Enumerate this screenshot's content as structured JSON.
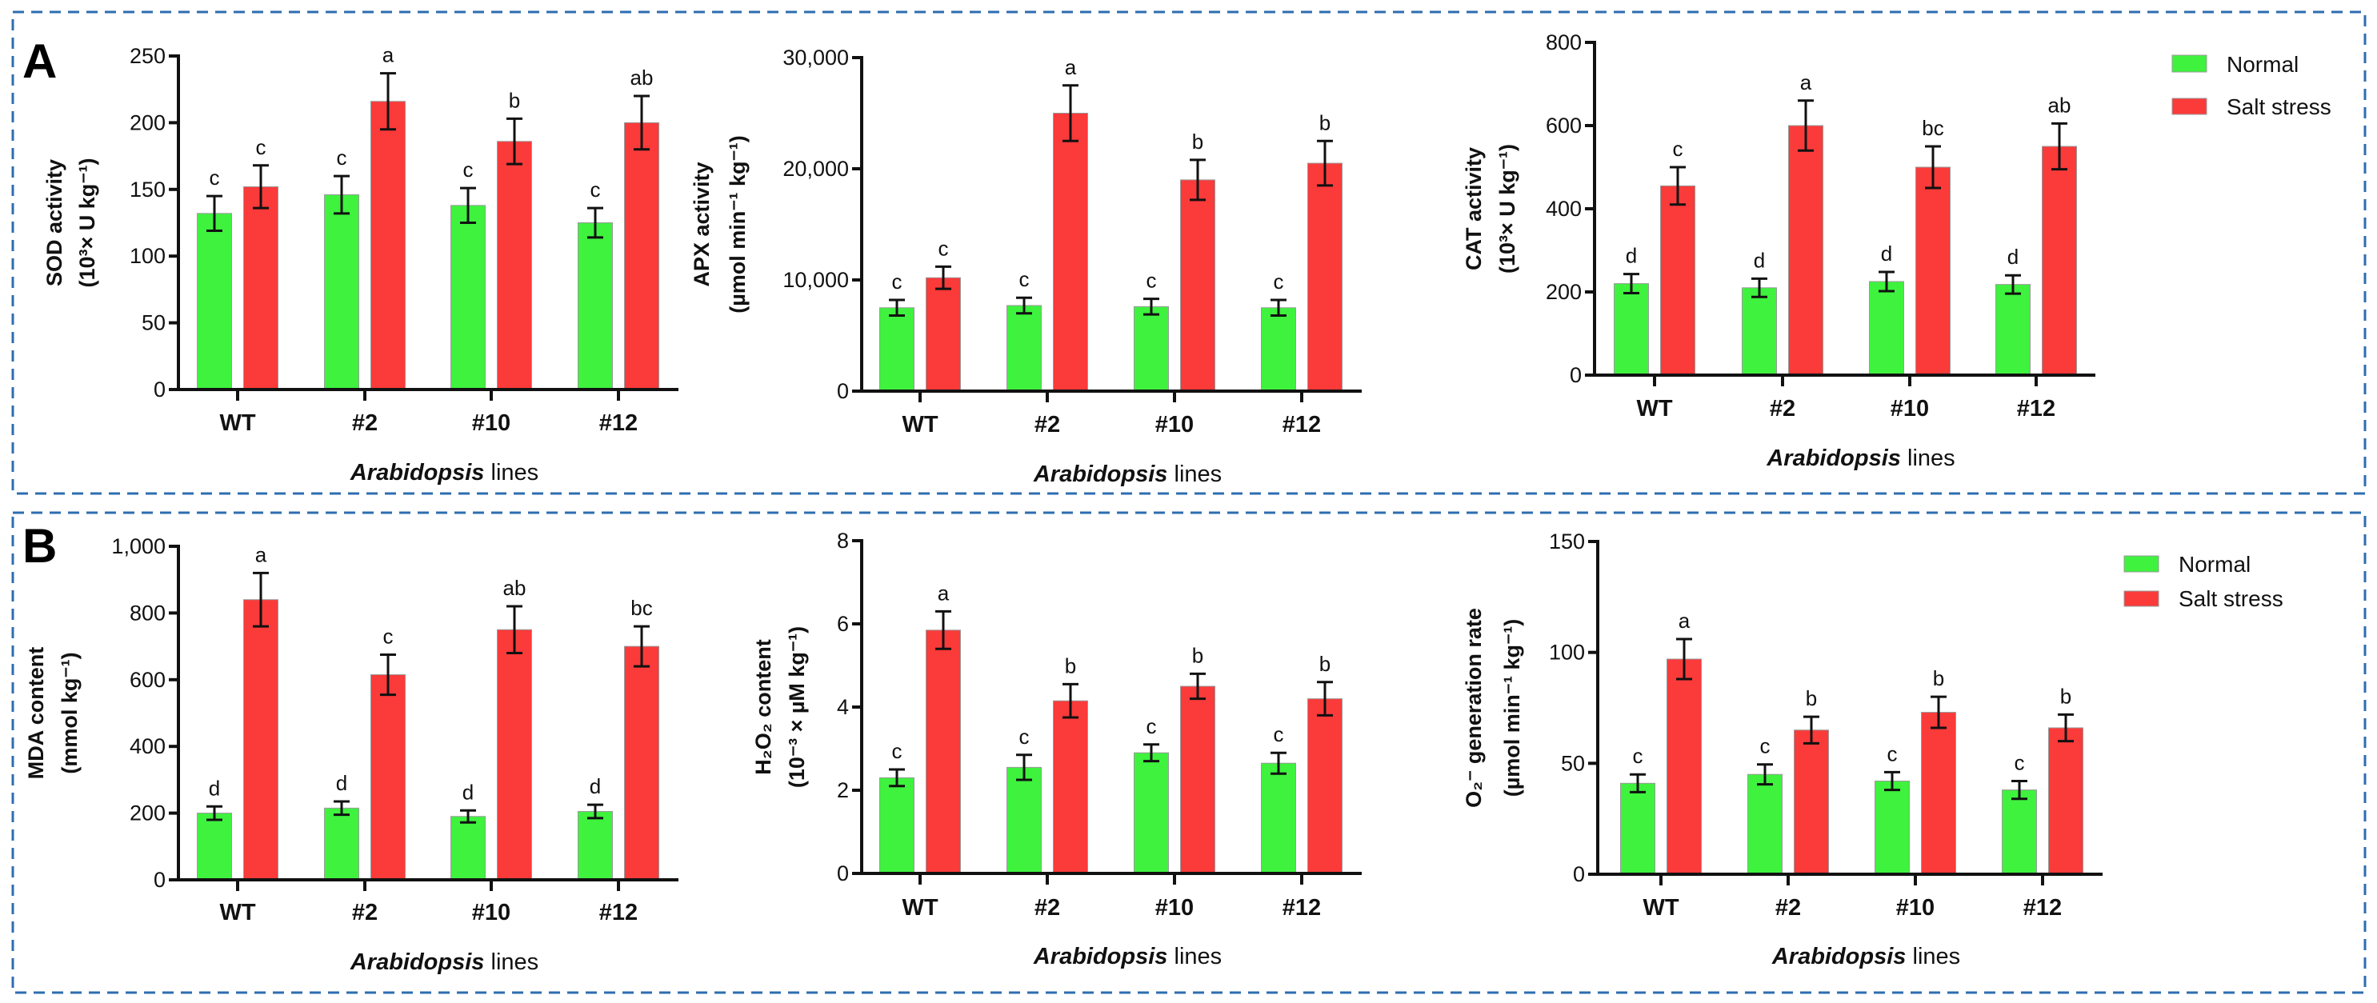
{
  "panels": [
    {
      "label": "A"
    },
    {
      "label": "B"
    }
  ],
  "legend": [
    {
      "name": "Normal",
      "color": "#3ef23e"
    },
    {
      "name": "Salt stress",
      "color": "#fb3a3a"
    }
  ],
  "chart_data": [
    {
      "type": "bar",
      "panel": "A",
      "ylabel": [
        "SOD activity",
        "(10³× U kg⁻¹)"
      ],
      "xlabel_italic": "Arabidopsis",
      "xlabel_rest": " lines",
      "categories": [
        "WT",
        "#2",
        "#10",
        "#12"
      ],
      "ylim": [
        0,
        250
      ],
      "yticks": [
        0,
        50,
        100,
        150,
        200,
        250
      ],
      "ytick_labels": [
        "0",
        "50",
        "100",
        "150",
        "200",
        "250"
      ],
      "series": [
        {
          "name": "Normal",
          "values": [
            132,
            146,
            138,
            125
          ],
          "errors": [
            13,
            14,
            13,
            11
          ],
          "letters": [
            "c",
            "c",
            "c",
            "c"
          ]
        },
        {
          "name": "Salt stress",
          "values": [
            152,
            216,
            186,
            200
          ],
          "errors": [
            16,
            21,
            17,
            20
          ],
          "letters": [
            "c",
            "a",
            "b",
            "ab"
          ]
        }
      ]
    },
    {
      "type": "bar",
      "panel": "A",
      "ylabel": [
        "APX activity",
        "(µmol min⁻¹ kg⁻¹)"
      ],
      "xlabel_italic": "Arabidopsis",
      "xlabel_rest": " lines",
      "categories": [
        "WT",
        "#2",
        "#10",
        "#12"
      ],
      "ylim": [
        0,
        30000
      ],
      "yticks": [
        0,
        10000,
        20000,
        30000
      ],
      "ytick_labels": [
        "0",
        "10,000",
        "20,000",
        "30,000"
      ],
      "series": [
        {
          "name": "Normal",
          "values": [
            7500,
            7700,
            7600,
            7500
          ],
          "errors": [
            700,
            700,
            700,
            700
          ],
          "letters": [
            "c",
            "c",
            "c",
            "c"
          ]
        },
        {
          "name": "Salt stress",
          "values": [
            10200,
            25000,
            19000,
            20500
          ],
          "errors": [
            1000,
            2500,
            1800,
            2000
          ],
          "letters": [
            "c",
            "a",
            "b",
            "b"
          ]
        }
      ]
    },
    {
      "type": "bar",
      "panel": "A",
      "ylabel": [
        "CAT activity",
        "(10³× U kg⁻¹)"
      ],
      "xlabel_italic": "Arabidopsis",
      "xlabel_rest": " lines",
      "categories": [
        "WT",
        "#2",
        "#10",
        "#12"
      ],
      "ylim": [
        0,
        800
      ],
      "yticks": [
        0,
        200,
        400,
        600,
        800
      ],
      "ytick_labels": [
        "0",
        "200",
        "400",
        "600",
        "800"
      ],
      "series": [
        {
          "name": "Normal",
          "values": [
            220,
            210,
            225,
            218
          ],
          "errors": [
            23,
            22,
            23,
            22
          ],
          "letters": [
            "d",
            "d",
            "d",
            "d"
          ]
        },
        {
          "name": "Salt stress",
          "values": [
            455,
            600,
            500,
            550
          ],
          "errors": [
            45,
            60,
            50,
            55
          ],
          "letters": [
            "c",
            "a",
            "bc",
            "ab"
          ]
        }
      ]
    },
    {
      "type": "bar",
      "panel": "B",
      "ylabel": [
        "MDA content",
        "(mmol kg⁻¹)"
      ],
      "xlabel_italic": "Arabidopsis",
      "xlabel_rest": " lines",
      "categories": [
        "WT",
        "#2",
        "#10",
        "#12"
      ],
      "ylim": [
        0,
        1000
      ],
      "yticks": [
        0,
        200,
        400,
        600,
        800,
        1000
      ],
      "ytick_labels": [
        "0",
        "200",
        "400",
        "600",
        "800",
        "1,000"
      ],
      "series": [
        {
          "name": "Normal",
          "values": [
            200,
            215,
            190,
            205
          ],
          "errors": [
            20,
            20,
            18,
            20
          ],
          "letters": [
            "d",
            "d",
            "d",
            "d"
          ]
        },
        {
          "name": "Salt stress",
          "values": [
            840,
            615,
            750,
            700
          ],
          "errors": [
            80,
            60,
            70,
            60
          ],
          "letters": [
            "a",
            "c",
            "ab",
            "bc"
          ]
        }
      ]
    },
    {
      "type": "bar",
      "panel": "B",
      "ylabel": [
        "H₂O₂ content",
        "(10⁻³ × µM kg⁻¹)"
      ],
      "xlabel_italic": "Arabidopsis",
      "xlabel_rest": " lines",
      "categories": [
        "WT",
        "#2",
        "#10",
        "#12"
      ],
      "ylim": [
        0,
        8
      ],
      "yticks": [
        0,
        2,
        4,
        6,
        8
      ],
      "ytick_labels": [
        "0",
        "2",
        "4",
        "6",
        "8"
      ],
      "series": [
        {
          "name": "Normal",
          "values": [
            2.3,
            2.55,
            2.9,
            2.65
          ],
          "errors": [
            0.2,
            0.3,
            0.2,
            0.25
          ],
          "letters": [
            "c",
            "c",
            "c",
            "c"
          ]
        },
        {
          "name": "Salt stress",
          "values": [
            5.85,
            4.15,
            4.5,
            4.2
          ],
          "errors": [
            0.45,
            0.4,
            0.3,
            0.4
          ],
          "letters": [
            "a",
            "b",
            "b",
            "b"
          ]
        }
      ]
    },
    {
      "type": "bar",
      "panel": "B",
      "ylabel": [
        "O₂⁻ generation rate",
        "(µmol min⁻¹ kg⁻¹)"
      ],
      "xlabel_italic": "Arabidopsis",
      "xlabel_rest": " lines",
      "categories": [
        "WT",
        "#2",
        "#10",
        "#12"
      ],
      "ylim": [
        0,
        150
      ],
      "yticks": [
        0,
        50,
        100,
        150
      ],
      "ytick_labels": [
        "0",
        "50",
        "100",
        "150"
      ],
      "series": [
        {
          "name": "Normal",
          "values": [
            41,
            45,
            42,
            38
          ],
          "errors": [
            4,
            4.5,
            4,
            4
          ],
          "letters": [
            "c",
            "c",
            "c",
            "c"
          ]
        },
        {
          "name": "Salt stress",
          "values": [
            97,
            65,
            73,
            66
          ],
          "errors": [
            9,
            6,
            7,
            6
          ],
          "letters": [
            "a",
            "b",
            "b",
            "b"
          ]
        }
      ]
    }
  ]
}
